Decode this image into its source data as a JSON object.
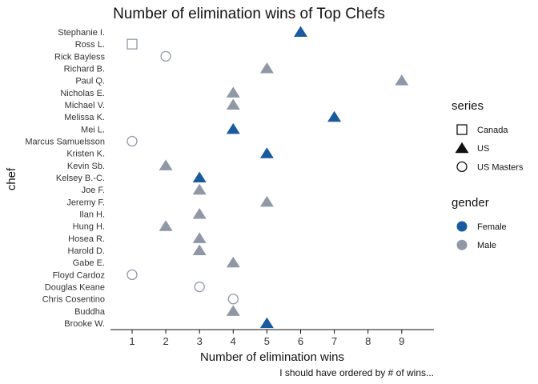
{
  "chart_data": {
    "type": "scatter",
    "title": "Number of elimination wins of Top Chefs",
    "xlabel": "Number of elimination wins",
    "ylabel": "chef",
    "caption": "I should have ordered by # of wins...",
    "xlim": [
      0.45,
      9.9
    ],
    "xticks": [
      1,
      2,
      3,
      4,
      5,
      6,
      7,
      8,
      9
    ],
    "grid": false,
    "legend_position": "right",
    "colors": {
      "Female": "#1a5a9e",
      "Male": "#9098a6"
    },
    "legends": [
      {
        "title": "series",
        "entries": [
          {
            "label": "Canada",
            "shape": "square"
          },
          {
            "label": "US",
            "shape": "triangle"
          },
          {
            "label": "US Masters",
            "shape": "circle"
          }
        ]
      },
      {
        "title": "gender",
        "entries": [
          {
            "label": "Female",
            "color": "#1a5a9e"
          },
          {
            "label": "Male",
            "color": "#9098a6"
          }
        ]
      }
    ],
    "points": [
      {
        "chef": "Stephanie I.",
        "wins": 6,
        "series": "US",
        "gender": "Female"
      },
      {
        "chef": "Ross L.",
        "wins": 1,
        "series": "Canada",
        "gender": "Male"
      },
      {
        "chef": "Rick Bayless",
        "wins": 2,
        "series": "US Masters",
        "gender": "Male"
      },
      {
        "chef": "Richard B.",
        "wins": 5,
        "series": "US",
        "gender": "Male"
      },
      {
        "chef": "Paul Q.",
        "wins": 9,
        "series": "US",
        "gender": "Male"
      },
      {
        "chef": "Nicholas E.",
        "wins": 4,
        "series": "US",
        "gender": "Male"
      },
      {
        "chef": "Michael V.",
        "wins": 4,
        "series": "US",
        "gender": "Male"
      },
      {
        "chef": "Melissa K.",
        "wins": 7,
        "series": "US",
        "gender": "Female"
      },
      {
        "chef": "Mei L.",
        "wins": 4,
        "series": "US",
        "gender": "Female"
      },
      {
        "chef": "Marcus Samuelsson",
        "wins": 1,
        "series": "US Masters",
        "gender": "Male"
      },
      {
        "chef": "Kristen K.",
        "wins": 5,
        "series": "US",
        "gender": "Female"
      },
      {
        "chef": "Kevin Sb.",
        "wins": 2,
        "series": "US",
        "gender": "Male"
      },
      {
        "chef": "Kelsey B.-C.",
        "wins": 3,
        "series": "US",
        "gender": "Female"
      },
      {
        "chef": "Joe F.",
        "wins": 3,
        "series": "US",
        "gender": "Male"
      },
      {
        "chef": "Jeremy F.",
        "wins": 5,
        "series": "US",
        "gender": "Male"
      },
      {
        "chef": "Ilan H.",
        "wins": 3,
        "series": "US",
        "gender": "Male"
      },
      {
        "chef": "Hung H.",
        "wins": 2,
        "series": "US",
        "gender": "Male"
      },
      {
        "chef": "Hosea R.",
        "wins": 3,
        "series": "US",
        "gender": "Male"
      },
      {
        "chef": "Harold D.",
        "wins": 3,
        "series": "US",
        "gender": "Male"
      },
      {
        "chef": "Gabe E.",
        "wins": 4,
        "series": "US",
        "gender": "Male"
      },
      {
        "chef": "Floyd Cardoz",
        "wins": 1,
        "series": "US Masters",
        "gender": "Male"
      },
      {
        "chef": "Douglas Keane",
        "wins": 3,
        "series": "US Masters",
        "gender": "Male"
      },
      {
        "chef": "Chris Cosentino",
        "wins": 4,
        "series": "US Masters",
        "gender": "Male"
      },
      {
        "chef": "Buddha",
        "wins": 4,
        "series": "US",
        "gender": "Male"
      },
      {
        "chef": "Brooke W.",
        "wins": 5,
        "series": "US",
        "gender": "Female"
      }
    ]
  }
}
